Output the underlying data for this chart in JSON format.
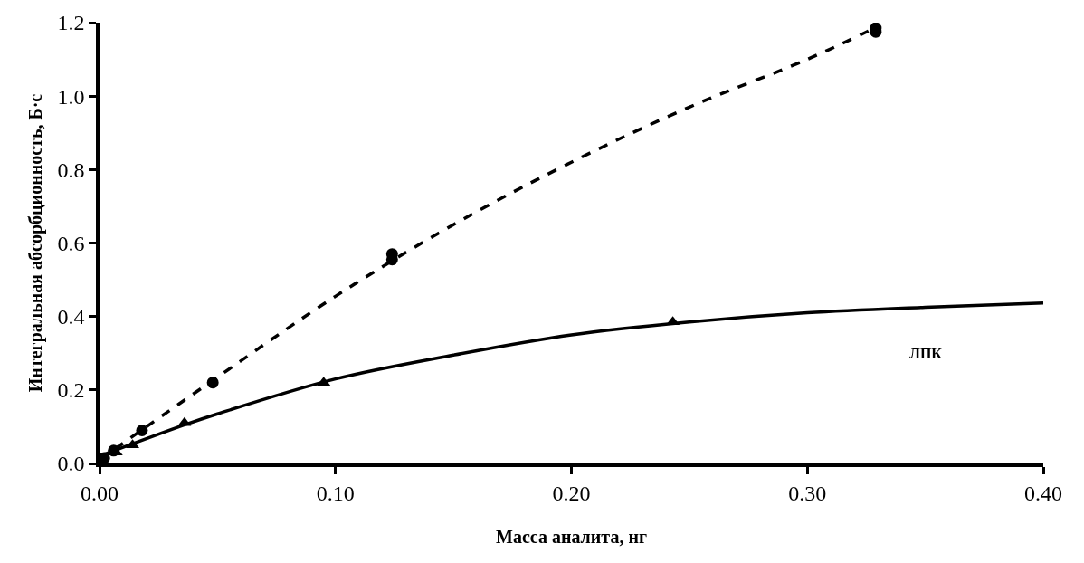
{
  "chart_data": {
    "type": "scatter",
    "xlabel": "Масса аналита, нг",
    "ylabel": "Интегральная абсорбционность, Б·с",
    "xlim": [
      0,
      0.4
    ],
    "ylim": [
      0,
      1.2
    ],
    "xticks": [
      {
        "value": 0,
        "label": "0.00"
      },
      {
        "value": 0.1,
        "label": "0.10"
      },
      {
        "value": 0.2,
        "label": "0.20"
      },
      {
        "value": 0.3,
        "label": "0.30"
      },
      {
        "value": 0.4,
        "label": "0.40"
      }
    ],
    "yticks": [
      {
        "value": 0,
        "label": "0.0"
      },
      {
        "value": 0.2,
        "label": "0.2"
      },
      {
        "value": 0.4,
        "label": "0.4"
      },
      {
        "value": 0.6,
        "label": "0.6"
      },
      {
        "value": 0.8,
        "label": "0.8"
      },
      {
        "value": 1.0,
        "label": "1.0"
      },
      {
        "value": 1.2,
        "label": "1.2"
      }
    ],
    "legend": false,
    "series": [
      {
        "type": "line",
        "color": "#000000",
        "line_style": "dashed",
        "marker": "none",
        "x": [
          0,
          0.05,
          0.1,
          0.15,
          0.2,
          0.25,
          0.3,
          0.33
        ],
        "values": [
          0.01,
          0.235,
          0.455,
          0.65,
          0.82,
          0.97,
          1.1,
          1.19
        ]
      },
      {
        "type": "line",
        "name": "ЛПК",
        "color": "#000000",
        "line_style": "solid",
        "marker": "none",
        "x": [
          0,
          0.036,
          0.05,
          0.1,
          0.15,
          0.2,
          0.25,
          0.3,
          0.35,
          0.4
        ],
        "values": [
          0.02,
          0.105,
          0.135,
          0.23,
          0.295,
          0.35,
          0.385,
          0.41,
          0.425,
          0.437
        ]
      },
      {
        "color": "#000000",
        "marker": "circle",
        "x": [
          0.002,
          0.006,
          0.018,
          0.048,
          0.124,
          0.124,
          0.329,
          0.329
        ],
        "values": [
          0.015,
          0.035,
          0.09,
          0.22,
          0.555,
          0.57,
          1.175,
          1.185
        ]
      },
      {
        "color": "#000000",
        "marker": "triangle",
        "x": [
          0.007,
          0.014,
          0.036,
          0.095,
          0.243
        ],
        "values": [
          0.03,
          0.05,
          0.11,
          0.22,
          0.385
        ]
      }
    ]
  }
}
